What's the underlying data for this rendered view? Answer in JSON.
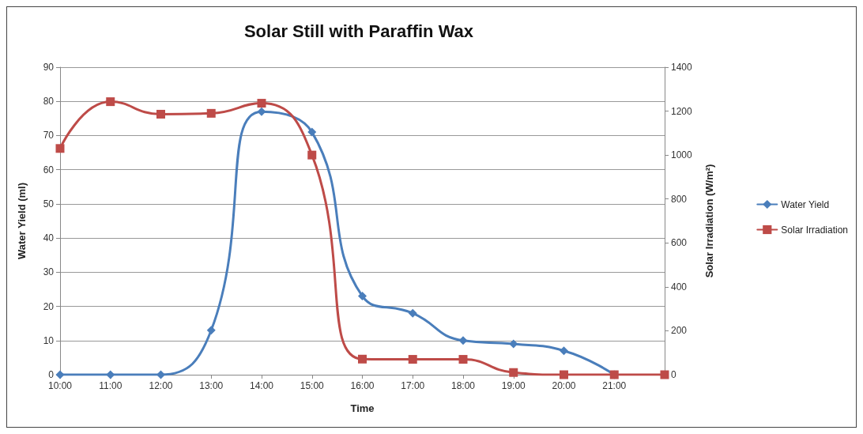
{
  "chart_data": {
    "type": "line",
    "title": "Solar Still with Paraffin Wax",
    "xlabel": "Time",
    "ylabel": "Water Yield (ml)",
    "y2label": "Solar Irradiation (W/m²)",
    "xlim": [
      10,
      22
    ],
    "xticks": [
      {
        "value": 10,
        "label": "10:00"
      },
      {
        "value": 11,
        "label": "11:00"
      },
      {
        "value": 12,
        "label": "12:00"
      },
      {
        "value": 13,
        "label": "13:00"
      },
      {
        "value": 14,
        "label": "14:00"
      },
      {
        "value": 15,
        "label": "15:00"
      },
      {
        "value": 16,
        "label": "16:00"
      },
      {
        "value": 17,
        "label": "17:00"
      },
      {
        "value": 18,
        "label": "18:00"
      },
      {
        "value": 19,
        "label": "19:00"
      },
      {
        "value": 20,
        "label": "20:00"
      },
      {
        "value": 21,
        "label": "21:00"
      },
      {
        "value": 22,
        "label": null
      }
    ],
    "ylim": [
      0,
      90
    ],
    "yticks": [
      0,
      10,
      20,
      30,
      40,
      50,
      60,
      70,
      80,
      90
    ],
    "y2lim": [
      0,
      1400
    ],
    "y2ticks": [
      0,
      200,
      400,
      600,
      800,
      1000,
      1200,
      1400
    ],
    "grid": "y",
    "legend": "right",
    "line_style": "solid",
    "series": [
      {
        "name": "Water Yield",
        "color": "#4a7ebb",
        "marker": "diamond",
        "x": [
          10,
          11,
          12,
          13,
          14,
          15,
          16,
          17,
          18,
          19,
          20,
          21
        ],
        "values": [
          0,
          0,
          0,
          13,
          77,
          71,
          23,
          18,
          10,
          9,
          7,
          0
        ]
      },
      {
        "name": "Solar Irradiation",
        "color": "#be4b48",
        "marker": "square",
        "axis": "y2",
        "x": [
          10,
          11,
          12,
          13,
          14,
          15,
          16,
          17,
          18,
          19,
          20,
          21,
          22
        ],
        "values": [
          1030,
          1243,
          1186,
          1190,
          1236,
          1000,
          71,
          70,
          70,
          10,
          0,
          0,
          0
        ]
      }
    ]
  }
}
